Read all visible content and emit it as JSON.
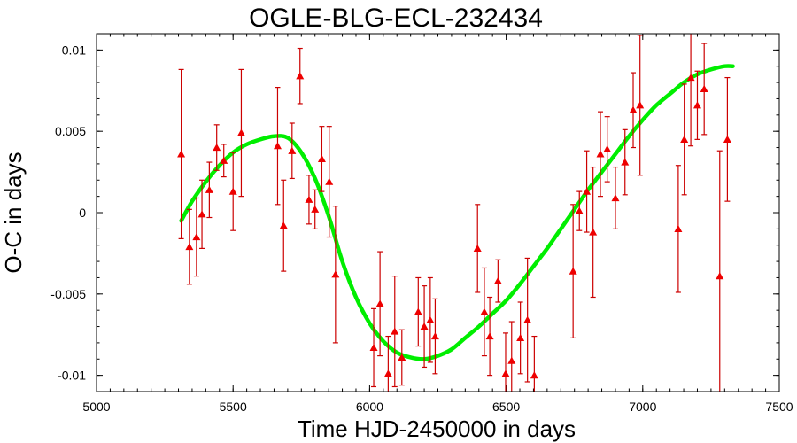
{
  "chart_data": {
    "type": "scatter",
    "title": "OGLE-BLG-ECL-232434",
    "xlabel": "Time HJD-2450000 in days",
    "ylabel": "O-C in days",
    "xlim": [
      5000,
      7500
    ],
    "ylim": [
      -0.011,
      0.011
    ],
    "x_ticks": [
      "5000",
      "5500",
      "6000",
      "6500",
      "7000",
      "7500"
    ],
    "y_ticks": [
      "0.01",
      "0.005",
      "0",
      "-0.005",
      "-0.01"
    ],
    "grid": false,
    "legend": "none",
    "colors": {
      "points": "#ee0000",
      "errorbars": "#cc0000",
      "fit": "#00ee00",
      "frame": "#000000"
    },
    "series": [
      {
        "kind": "points_with_errorbars",
        "marker": "triangle",
        "points": [
          {
            "x": 5310,
            "y": 0.0036,
            "err": 0.0052
          },
          {
            "x": 5340,
            "y": -0.0021,
            "err": 0.0023
          },
          {
            "x": 5366,
            "y": -0.0015,
            "err": 0.0024
          },
          {
            "x": 5386,
            "y": -0.0001,
            "err": 0.0021
          },
          {
            "x": 5413,
            "y": 0.0014,
            "err": 0.0017
          },
          {
            "x": 5440,
            "y": 0.004,
            "err": 0.0014
          },
          {
            "x": 5466,
            "y": 0.0032,
            "err": 0.001
          },
          {
            "x": 5500,
            "y": 0.0013,
            "err": 0.0024
          },
          {
            "x": 5530,
            "y": 0.0049,
            "err": 0.0039
          },
          {
            "x": 5685,
            "y": -0.0008,
            "err": 0.0028
          },
          {
            "x": 5663,
            "y": 0.0041,
            "err": 0.0036
          },
          {
            "x": 5716,
            "y": 0.0038,
            "err": 0.0017
          },
          {
            "x": 5745,
            "y": 0.0084,
            "err": 0.0017
          },
          {
            "x": 5778,
            "y": 0.0008,
            "err": 0.0015
          },
          {
            "x": 5800,
            "y": 0.0002,
            "err": 0.0012
          },
          {
            "x": 5825,
            "y": 0.0033,
            "err": 0.002
          },
          {
            "x": 5852,
            "y": 0.0019,
            "err": 0.0034
          },
          {
            "x": 5875,
            "y": -0.0038,
            "err": 0.0042
          },
          {
            "x": 6015,
            "y": -0.0083,
            "err": 0.0024
          },
          {
            "x": 6038,
            "y": -0.0056,
            "err": 0.0032
          },
          {
            "x": 6068,
            "y": -0.0099,
            "err": 0.0023
          },
          {
            "x": 6092,
            "y": -0.0073,
            "err": 0.0034
          },
          {
            "x": 6118,
            "y": -0.0089,
            "err": 0.0017
          },
          {
            "x": 6178,
            "y": -0.0061,
            "err": 0.0021
          },
          {
            "x": 6200,
            "y": -0.007,
            "err": 0.0025
          },
          {
            "x": 6222,
            "y": -0.0066,
            "err": 0.0026
          },
          {
            "x": 6240,
            "y": -0.0076,
            "err": 0.0023
          },
          {
            "x": 6395,
            "y": -0.0022,
            "err": 0.0027
          },
          {
            "x": 6420,
            "y": -0.0061,
            "err": 0.0027
          },
          {
            "x": 6440,
            "y": -0.0076,
            "err": 0.0024
          },
          {
            "x": 6470,
            "y": -0.0042,
            "err": 0.0013
          },
          {
            "x": 6498,
            "y": -0.0099,
            "err": 0.0025
          },
          {
            "x": 6520,
            "y": -0.0091,
            "err": 0.0024
          },
          {
            "x": 6552,
            "y": -0.0077,
            "err": 0.0022
          },
          {
            "x": 6578,
            "y": -0.0066,
            "err": 0.0038
          },
          {
            "x": 6603,
            "y": -0.01,
            "err": 0.0024
          },
          {
            "x": 6745,
            "y": -0.0036,
            "err": 0.0041
          },
          {
            "x": 6768,
            "y": 0.0001,
            "err": 0.0012
          },
          {
            "x": 6795,
            "y": 0.0013,
            "err": 0.0025
          },
          {
            "x": 6818,
            "y": -0.0012,
            "err": 0.004
          },
          {
            "x": 6845,
            "y": 0.0036,
            "err": 0.0026
          },
          {
            "x": 6870,
            "y": 0.0039,
            "err": 0.002
          },
          {
            "x": 6900,
            "y": 0.0009,
            "err": 0.0019
          },
          {
            "x": 6935,
            "y": 0.0031,
            "err": 0.002
          },
          {
            "x": 6965,
            "y": 0.0063,
            "err": 0.0023
          },
          {
            "x": 6990,
            "y": 0.0066,
            "err": 0.0043
          },
          {
            "x": 7130,
            "y": -0.001,
            "err": 0.0039
          },
          {
            "x": 7152,
            "y": 0.0045,
            "err": 0.0034
          },
          {
            "x": 7176,
            "y": 0.0083,
            "err": 0.0042
          },
          {
            "x": 7200,
            "y": 0.0066,
            "err": 0.0021
          },
          {
            "x": 7225,
            "y": 0.0076,
            "err": 0.0028
          },
          {
            "x": 7282,
            "y": -0.0039,
            "err": 0.0077
          },
          {
            "x": 7310,
            "y": 0.0045,
            "err": 0.0038
          }
        ]
      },
      {
        "kind": "fit_curve",
        "x": [
          5310,
          5350,
          5400,
          5450,
          5500,
          5550,
          5600,
          5650,
          5700,
          5750,
          5800,
          5850,
          5900,
          5950,
          6000,
          6050,
          6100,
          6150,
          6200,
          6250,
          6300,
          6350,
          6400,
          6450,
          6500,
          6550,
          6600,
          6650,
          6700,
          6750,
          6800,
          6850,
          6900,
          6950,
          7000,
          7050,
          7100,
          7150,
          7200,
          7250,
          7300,
          7330
        ],
        "y": [
          -0.0005,
          0.0007,
          0.0019,
          0.0029,
          0.0037,
          0.0042,
          0.0045,
          0.0047,
          0.0046,
          0.0037,
          0.0021,
          -0.0002,
          -0.003,
          -0.0052,
          -0.0068,
          -0.0079,
          -0.0086,
          -0.0089,
          -0.009,
          -0.0088,
          -0.0084,
          -0.0077,
          -0.007,
          -0.0062,
          -0.0054,
          -0.0044,
          -0.0033,
          -0.0022,
          -0.001,
          0.0002,
          0.0014,
          0.0025,
          0.0036,
          0.0047,
          0.0057,
          0.0066,
          0.0073,
          0.008,
          0.0085,
          0.0088,
          0.009,
          0.009
        ]
      }
    ]
  }
}
